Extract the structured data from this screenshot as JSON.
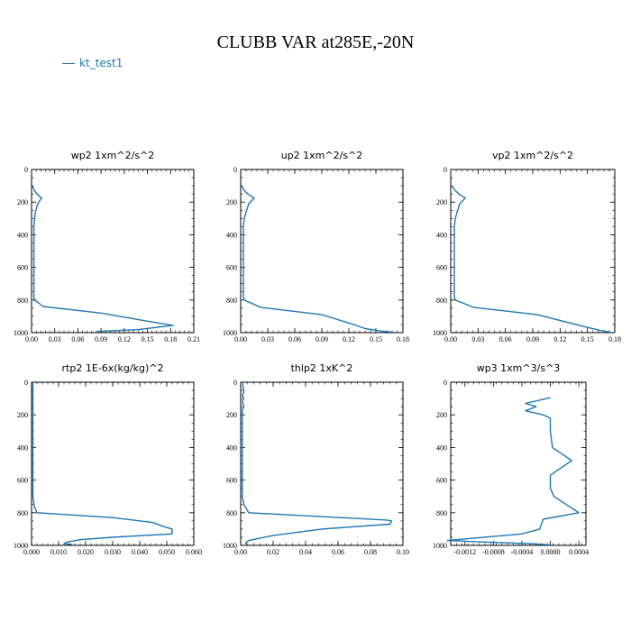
{
  "title": "CLUBB VAR at285E,-20N",
  "legend": {
    "label": "kt_test1",
    "color": "#1f77b4"
  },
  "chart_data": [
    {
      "type": "line",
      "title": "wp2  1xm^2/s^2",
      "xlim": [
        0,
        0.21
      ],
      "ylim": [
        1000,
        0
      ],
      "xticks": [
        "0.00",
        "0.03",
        "0.06",
        "0.09",
        "0.12",
        "0.15",
        "0.18",
        "0.21"
      ],
      "yticks": [
        "0",
        "200",
        "400",
        "600",
        "800",
        "1000"
      ],
      "series": [
        {
          "color": "#1f77b4",
          "x": [
            0.001,
            0.004,
            0.007,
            0.013,
            0.008,
            0.005,
            0.004,
            0.003,
            0.003,
            0.003,
            0.003,
            0.003,
            0.003,
            0.004,
            0.015,
            0.09,
            0.15,
            0.183,
            0.14,
            0.085
          ],
          "y": [
            100,
            130,
            150,
            175,
            210,
            260,
            300,
            350,
            400,
            500,
            600,
            700,
            780,
            800,
            840,
            880,
            930,
            955,
            980,
            993
          ]
        }
      ]
    },
    {
      "type": "line",
      "title": "up2  1xm^2/s^2",
      "xlim": [
        0,
        0.18
      ],
      "ylim": [
        1000,
        0
      ],
      "xticks": [
        "0.00",
        "0.03",
        "0.06",
        "0.09",
        "0.12",
        "0.15",
        "0.18"
      ],
      "yticks": [
        "0",
        "200",
        "400",
        "600",
        "800",
        "1000"
      ],
      "series": [
        {
          "color": "#1f77b4",
          "x": [
            0.001,
            0.004,
            0.008,
            0.015,
            0.009,
            0.006,
            0.004,
            0.003,
            0.003,
            0.003,
            0.003,
            0.003,
            0.003,
            0.004,
            0.022,
            0.09,
            0.125,
            0.138,
            0.155,
            0.17
          ],
          "y": [
            100,
            130,
            150,
            175,
            210,
            260,
            300,
            350,
            400,
            500,
            600,
            700,
            780,
            800,
            845,
            890,
            950,
            975,
            990,
            998
          ]
        }
      ]
    },
    {
      "type": "line",
      "title": "vp2  1xm^2/s^2",
      "xlim": [
        0,
        0.18
      ],
      "ylim": [
        1000,
        0
      ],
      "xticks": [
        "0.00",
        "0.03",
        "0.06",
        "0.09",
        "0.12",
        "0.15",
        "0.18"
      ],
      "yticks": [
        "0",
        "200",
        "400",
        "600",
        "800",
        "1000"
      ],
      "series": [
        {
          "color": "#1f77b4",
          "x": [
            0.001,
            0.005,
            0.009,
            0.016,
            0.01,
            0.007,
            0.005,
            0.004,
            0.004,
            0.004,
            0.004,
            0.004,
            0.004,
            0.005,
            0.025,
            0.095,
            0.13,
            0.148,
            0.163,
            0.175
          ],
          "y": [
            100,
            130,
            150,
            175,
            210,
            260,
            300,
            350,
            400,
            500,
            600,
            700,
            780,
            800,
            845,
            890,
            940,
            965,
            985,
            997
          ]
        }
      ]
    },
    {
      "type": "line",
      "title": "rtp2  1E-6x(kg/kg)^2",
      "xlim": [
        0,
        0.06
      ],
      "ylim": [
        1000,
        0
      ],
      "xticks": [
        "0.000",
        "0.010",
        "0.020",
        "0.030",
        "0.040",
        "0.050",
        "0.060"
      ],
      "yticks": [
        "0",
        "200",
        "400",
        "600",
        "800",
        "1000"
      ],
      "series": [
        {
          "color": "#1f77b4",
          "x": [
            0.0005,
            0.0005,
            0.0005,
            0.0005,
            0.0005,
            0.0005,
            0.001,
            0.002,
            0.03,
            0.045,
            0.048,
            0.052,
            0.052,
            0.03,
            0.018,
            0.013,
            0.012,
            0.015
          ],
          "y": [
            0,
            200,
            400,
            500,
            600,
            700,
            760,
            800,
            830,
            860,
            880,
            900,
            930,
            950,
            965,
            980,
            990,
            995
          ]
        }
      ]
    },
    {
      "type": "line",
      "title": "thlp2  1xK^2",
      "xlim": [
        0,
        0.1
      ],
      "ylim": [
        1000,
        0
      ],
      "xticks": [
        "0.00",
        "0.02",
        "0.04",
        "0.06",
        "0.08",
        "0.10"
      ],
      "yticks": [
        "0",
        "200",
        "400",
        "600",
        "800",
        "1000"
      ],
      "series": [
        {
          "color": "#1f77b4",
          "x": [
            0.001,
            0.002,
            0.001,
            0.002,
            0.001,
            0.002,
            0.001,
            0.001,
            0.001,
            0.001,
            0.001,
            0.001,
            0.002,
            0.005,
            0.09,
            0.093,
            0.092,
            0.05,
            0.02,
            0.005,
            0.003,
            0.004
          ],
          "y": [
            0,
            60,
            80,
            100,
            120,
            150,
            170,
            200,
            400,
            500,
            600,
            700,
            750,
            800,
            845,
            850,
            870,
            900,
            940,
            970,
            985,
            995
          ]
        }
      ]
    },
    {
      "type": "line",
      "title": "wp3  1xm^3/s^3",
      "xlim": [
        -0.0014,
        0.0005
      ],
      "ylim": [
        1000,
        0
      ],
      "xticks": [
        "-0.0012",
        "-0.0008",
        "-0.0004",
        "0.0000",
        "0.0004"
      ],
      "yticks": [
        "0",
        "200",
        "400",
        "600",
        "800",
        "1000"
      ],
      "series": [
        {
          "color": "#1f77b4",
          "x": [
            0.0,
            -0.00035,
            -0.0002,
            -0.00035,
            -0.0001,
            0.0,
            0.0,
            3e-05,
            0.0003,
            0.0,
            0.0,
            5e-05,
            0.0004,
            -0.0001,
            -0.00015,
            -0.0004,
            -0.00145,
            -0.0009,
            -0.00025,
            0.0
          ],
          "y": [
            95,
            130,
            150,
            175,
            200,
            220,
            300,
            400,
            480,
            570,
            650,
            700,
            800,
            840,
            900,
            930,
            970,
            980,
            990,
            998
          ]
        }
      ]
    }
  ]
}
